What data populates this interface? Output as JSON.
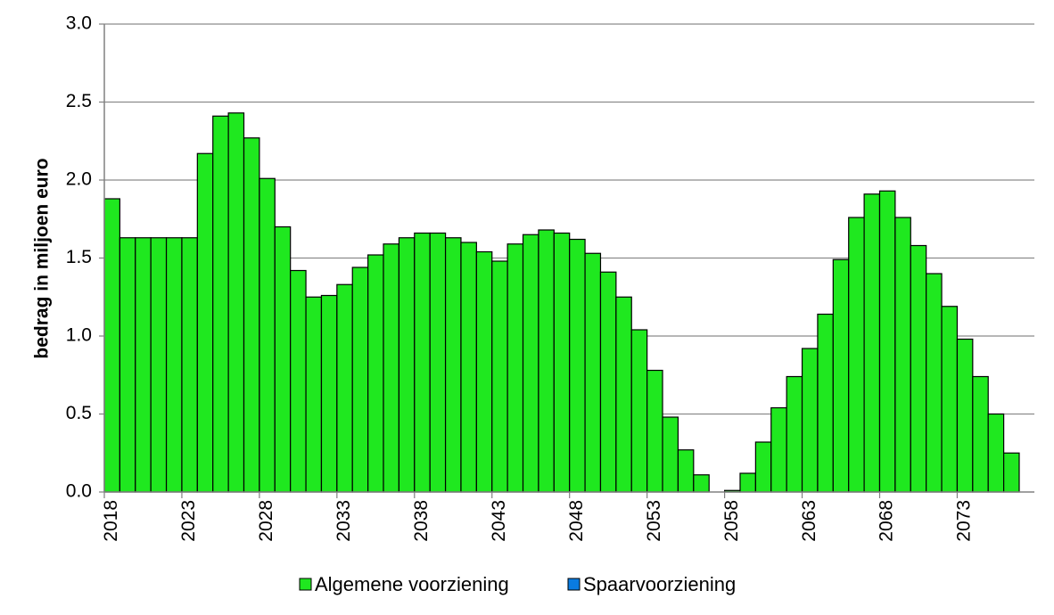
{
  "chart_data": {
    "type": "bar",
    "title": "",
    "xlabel": "",
    "ylabel": "bedrag in miljoen euro",
    "ylim": [
      0,
      3.0
    ],
    "yticks": [
      "0.0",
      "0.5",
      "1.0",
      "1.5",
      "2.0",
      "2.5",
      "3.0"
    ],
    "x": [
      2018,
      2019,
      2020,
      2021,
      2022,
      2023,
      2024,
      2025,
      2026,
      2027,
      2028,
      2029,
      2030,
      2031,
      2032,
      2033,
      2034,
      2035,
      2036,
      2037,
      2038,
      2039,
      2040,
      2041,
      2042,
      2043,
      2044,
      2045,
      2046,
      2047,
      2048,
      2049,
      2050,
      2051,
      2052,
      2053,
      2054,
      2055,
      2056,
      2057,
      2058,
      2059,
      2060,
      2061,
      2062,
      2063,
      2064,
      2065,
      2066,
      2067,
      2068,
      2069,
      2070,
      2071,
      2072,
      2073,
      2074,
      2075,
      2076
    ],
    "xticks": [
      "2018",
      "2023",
      "2028",
      "2033",
      "2038",
      "2043",
      "2048",
      "2053",
      "2058",
      "2063",
      "2068",
      "2073"
    ],
    "grid": true,
    "legend_position": "bottom",
    "series": [
      {
        "name": "Algemene voorziening",
        "color": "#1fe81f",
        "values": [
          1.88,
          1.63,
          1.63,
          1.63,
          1.63,
          1.63,
          2.17,
          2.41,
          2.43,
          2.27,
          2.01,
          1.7,
          1.42,
          1.25,
          1.26,
          1.33,
          1.44,
          1.52,
          1.59,
          1.63,
          1.66,
          1.66,
          1.63,
          1.6,
          1.54,
          1.48,
          1.59,
          1.65,
          1.68,
          1.66,
          1.62,
          1.53,
          1.41,
          1.25,
          1.04,
          0.78,
          0.48,
          0.27,
          0.11,
          0.0,
          0.01,
          0.12,
          0.32,
          0.54,
          0.74,
          0.92,
          1.14,
          1.49,
          1.76,
          1.91,
          1.93,
          1.76,
          1.58,
          1.4,
          1.19,
          0.98,
          0.74,
          0.5,
          0.25
        ]
      },
      {
        "name": "Spaarvoorziening",
        "color": "#0a7be0",
        "values": [
          0,
          0,
          0,
          0,
          0,
          0,
          0,
          0,
          0,
          0,
          0,
          0,
          0,
          0,
          0,
          0,
          0,
          0,
          0,
          0,
          0,
          0,
          0,
          0,
          0,
          0,
          0,
          0,
          0,
          0,
          0,
          0,
          0,
          0,
          0,
          0,
          0,
          0,
          0,
          0,
          0,
          0,
          0,
          0,
          0,
          0,
          0,
          0,
          0,
          0,
          0,
          0,
          0,
          0,
          0,
          0,
          0,
          0,
          0
        ]
      }
    ]
  }
}
